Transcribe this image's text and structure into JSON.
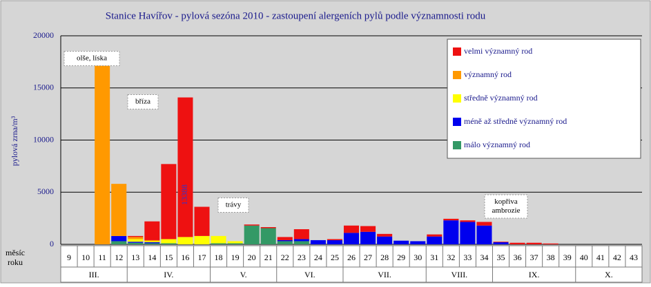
{
  "chart_data": {
    "type": "bar",
    "stacked": true,
    "title": "Stanice Havířov - pylová sezóna 2010 - zastoupení alergeních pylů podle významnosti rodu",
    "y_label": "pylová zrna/m³",
    "row_label": [
      "měsíc",
      "roku"
    ],
    "months": [
      "III.",
      "IV.",
      "V.",
      "VI.",
      "VII.",
      "VIII.",
      "IX.",
      "X."
    ],
    "categories": [
      "9",
      "10",
      "11",
      "12",
      "13",
      "14",
      "15",
      "16",
      "17",
      "18",
      "19",
      "20",
      "21",
      "22",
      "23",
      "24",
      "25",
      "26",
      "27",
      "28",
      "29",
      "30",
      "31",
      "32",
      "33",
      "34",
      "35",
      "36",
      "37",
      "38",
      "39",
      "40",
      "41",
      "42",
      "43"
    ],
    "series": [
      {
        "name": "málo významný rod",
        "color": "#339966",
        "values": [
          0,
          0,
          0,
          300,
          150,
          100,
          100,
          0,
          0,
          100,
          100,
          1800,
          1550,
          300,
          300,
          0,
          0,
          0,
          0,
          0,
          0,
          0,
          0,
          0,
          0,
          0,
          0,
          0,
          0,
          0,
          0,
          0,
          0,
          0,
          0
        ]
      },
      {
        "name": "méně až středně významný rod",
        "color": "#0000ee",
        "values": [
          0,
          0,
          0,
          500,
          100,
          100,
          0,
          0,
          0,
          0,
          0,
          0,
          0,
          100,
          200,
          400,
          400,
          1100,
          1200,
          750,
          350,
          300,
          750,
          2300,
          2150,
          1800,
          200,
          0,
          0,
          0,
          0,
          0,
          0,
          0,
          0
        ]
      },
      {
        "name": "středně významný rod",
        "color": "#ffff00",
        "values": [
          0,
          0,
          0,
          0,
          250,
          100,
          400,
          700,
          800,
          700,
          200,
          0,
          0,
          0,
          0,
          0,
          0,
          0,
          0,
          0,
          0,
          0,
          0,
          0,
          0,
          0,
          0,
          0,
          0,
          0,
          0,
          0,
          0,
          0,
          0
        ]
      },
      {
        "name": "významný rod",
        "color": "#ff9900",
        "values": [
          0,
          0,
          18400,
          5000,
          200,
          100,
          0,
          0,
          0,
          0,
          0,
          0,
          0,
          0,
          0,
          0,
          0,
          0,
          0,
          0,
          0,
          0,
          0,
          0,
          0,
          0,
          0,
          0,
          0,
          0,
          0,
          0,
          0,
          0,
          0
        ]
      },
      {
        "name": "velmi významný rod",
        "color": "#ee1111",
        "values": [
          0,
          0,
          0,
          0,
          100,
          1800,
          7200,
          13388,
          2800,
          0,
          0,
          100,
          100,
          300,
          950,
          0,
          100,
          700,
          550,
          250,
          0,
          0,
          200,
          150,
          150,
          350,
          50,
          150,
          150,
          80,
          0,
          0,
          0,
          0,
          0
        ]
      }
    ],
    "annotations": [
      [
        "olše, líska"
      ],
      [
        "bříza"
      ],
      [
        "trávy"
      ],
      [
        "kopřiva",
        "ambrozie"
      ]
    ],
    "ylim": [
      0,
      20000
    ],
    "yticks": [
      0,
      5000,
      10000,
      15000,
      20000
    ],
    "grid": true,
    "legend": "top-right"
  }
}
